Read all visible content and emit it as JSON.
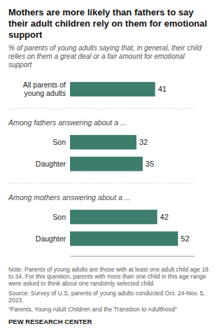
{
  "chart_data": {
    "type": "bar",
    "orientation": "horizontal",
    "title": "Mothers are more likely than fathers to say their adult children rely on them for emotional support",
    "subtitle": "% of parents of young adults saying that, in general, their child relies on them a great deal or a fair amount for emotional support",
    "categories": [
      "All parents of\nyoung adults",
      "Son",
      "Daughter",
      "Son",
      "Daughter"
    ],
    "values": [
      41,
      32,
      35,
      42,
      52
    ],
    "color": "#3c7d6e",
    "xlim": [
      0,
      60
    ],
    "data_labels": true,
    "tick_labels": "y",
    "grid": false,
    "annotations": [
      "Among fathers answering about a ...",
      "Among mothers answering about a ..."
    ],
    "notes": [
      "Note: Parents of young adults are those with at least one adult child age 18 to 34. For this question, parents with more than one child in this age range were asked to think about one randomly selected child.",
      "Source: Survey of U.S. parents of young adults conducted Oct. 24-Nov. 5, 2023.",
      "“Parents, Young Adult Children and the Transition to Adulthood”"
    ],
    "footer": "PEW RESEARCH CENTER"
  }
}
